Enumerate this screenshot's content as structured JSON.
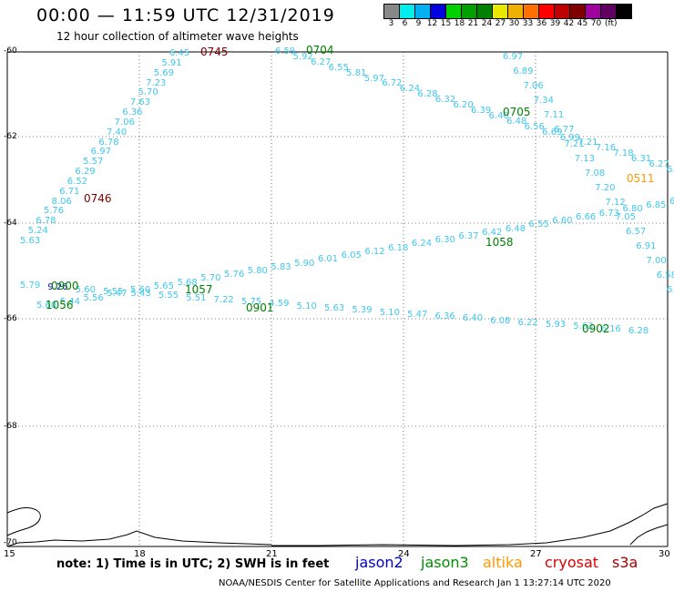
{
  "title": "00:00 — 11:59 UTC 12/31/2019",
  "subtitle": "12 hour collection of altimeter wave heights",
  "scale": {
    "colors": [
      "#888888",
      "#00eeee",
      "#00b0f0",
      "#0000e0",
      "#00d000",
      "#00a000",
      "#008000",
      "#e8e800",
      "#f0b000",
      "#ff7000",
      "#ff0000",
      "#c00000",
      "#800000",
      "#a000a0",
      "#600060",
      "#000000"
    ],
    "labels": [
      "3",
      "6",
      "9",
      "12",
      "15",
      "18",
      "21",
      "24",
      "27",
      "30",
      "33",
      "36",
      "39",
      "42",
      "45",
      "70"
    ],
    "unit": "(ft)"
  },
  "axes": {
    "lat_labels": [
      "-60",
      "-62",
      "-64",
      "-66",
      "-68",
      "-70"
    ],
    "lon_labels": [
      "15",
      "18",
      "21",
      "24",
      "27",
      "30"
    ]
  },
  "note": "note: 1) Time is in UTC; 2) SWH is in feet",
  "legend": [
    {
      "name": "jason2",
      "color": "#0000cc"
    },
    {
      "name": "jason3",
      "color": "#009000"
    },
    {
      "name": "altika",
      "color": "#ff9900"
    },
    {
      "name": "cryosat",
      "color": "#dd0000"
    },
    {
      "name": "s3a",
      "color": "#aa0000"
    }
  ],
  "footer": "NOAA/NESDIS Center for Satellite Applications and Research   Jan  1 13:27:14 UTC 2020",
  "colors": {
    "wave": "#3fc8ee",
    "time_green": "#008000",
    "time_dark": "#800000",
    "time_orange": "#ff9900",
    "jason2_val": "#0000cc"
  },
  "time_labels": {
    "t0745": "0745",
    "t0746": "0746",
    "t0704": "0704",
    "t0705": "0705",
    "t0511": "0511",
    "t0900": "0900",
    "t0901": "0901",
    "t0902": "0902",
    "t1056": "1056",
    "t1057": "1057",
    "t1058": "1058"
  },
  "track_a": [
    "5.63",
    "5.24",
    "6.78",
    "5.76",
    "8.06",
    "6.71",
    "6.52",
    "6.29",
    "5.57",
    "6.97",
    "6.78",
    "7.40",
    "7.06",
    "6.36",
    "7.63",
    "5.70",
    "7.23",
    "5.69",
    "5.91",
    "6.45"
  ],
  "track_b": [
    "6.59",
    "5.92",
    "6.27",
    "6.55",
    "5.81",
    "5.97",
    "6.72",
    "6.24",
    "6.28",
    "6.32",
    "6.20",
    "6.39",
    "6.40",
    "6.48",
    "6.56",
    "6.69",
    "6.99",
    "7.21",
    "7.16",
    "7.18",
    "6.31",
    "6.27",
    "6.83"
  ],
  "track_c": [
    "6.97",
    "6.89",
    "7.06",
    "7.34",
    "7.11",
    "6.77",
    "7.21",
    "7.13",
    "7.08",
    "7.20",
    "7.12",
    "7.05",
    "6.57",
    "6.91",
    "7.00",
    "6.58",
    "6.63"
  ],
  "track_d": [
    "5.79",
    "9.26",
    "5.60",
    "5.55",
    "5.43",
    "5.55",
    "5.51",
    "7.22",
    "5.75",
    "4.59",
    "5.10",
    "5.63",
    "5.39",
    "5.10",
    "5.47",
    "6.36",
    "6.40",
    "6.08",
    "6.22",
    "5.93",
    "5.63",
    "6.16",
    "6.28"
  ]
}
